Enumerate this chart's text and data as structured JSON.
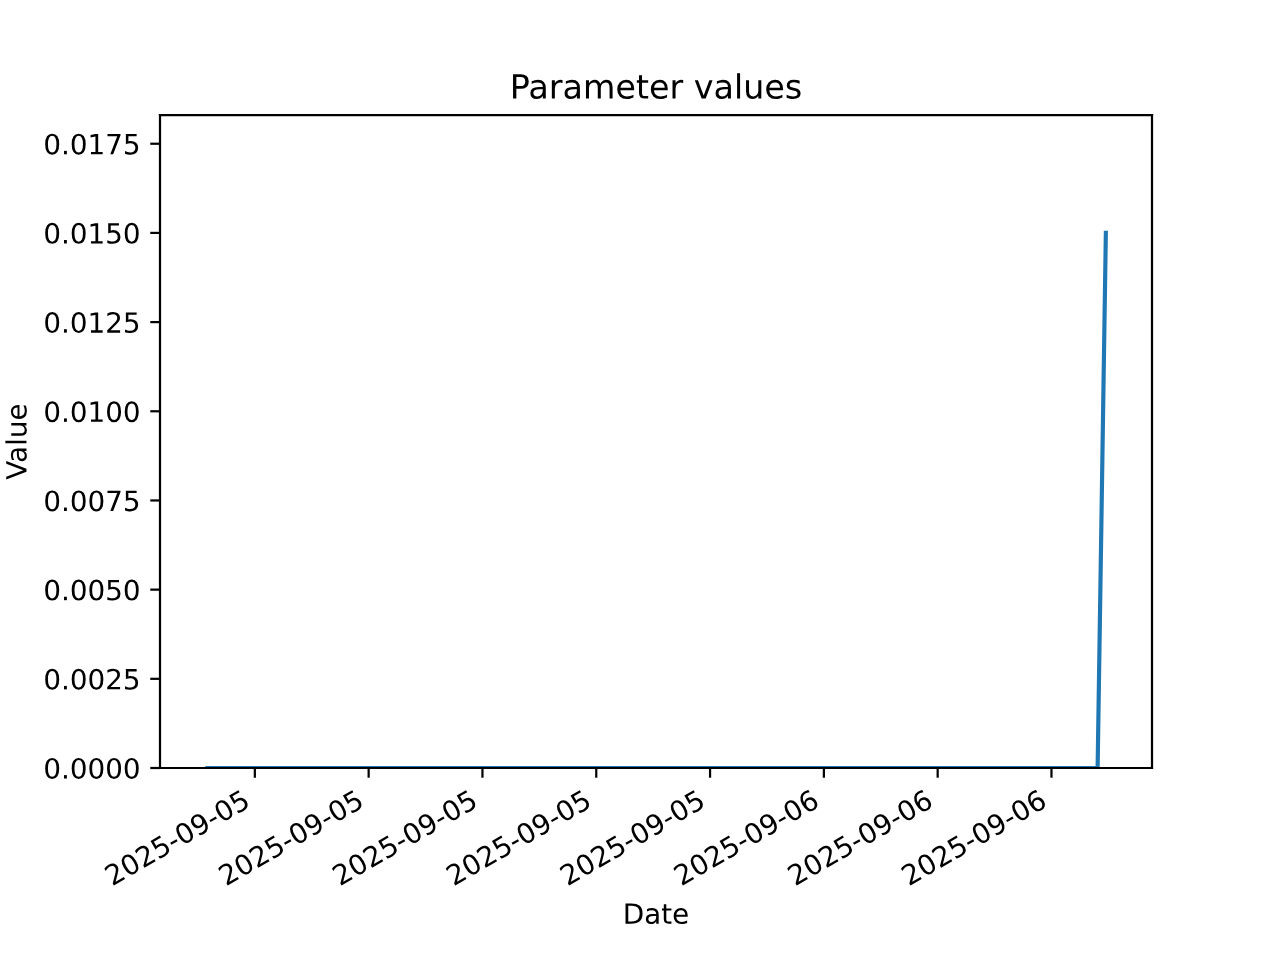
{
  "chart_data": {
    "type": "line",
    "title": "Parameter values",
    "xlabel": "Date",
    "ylabel": "Value",
    "x": [
      "2025-09-05T07:45",
      "2025-09-06T07:13",
      "2025-09-06T07:26"
    ],
    "series": [
      {
        "color": "#1f77b4",
        "values": [
          0,
          0,
          0.015
        ]
      }
    ],
    "xlim": [
      "2025-09-05T06:30",
      "2025-09-06T08:39"
    ],
    "xticks": [
      {
        "value": "2025-09-05T09:00",
        "label": "2025-09-05"
      },
      {
        "value": "2025-09-05T12:00",
        "label": "2025-09-05"
      },
      {
        "value": "2025-09-05T15:00",
        "label": "2025-09-05"
      },
      {
        "value": "2025-09-05T18:00",
        "label": "2025-09-05"
      },
      {
        "value": "2025-09-05T21:00",
        "label": "2025-09-05"
      },
      {
        "value": "2025-09-06T00:00",
        "label": "2025-09-06"
      },
      {
        "value": "2025-09-06T03:00",
        "label": "2025-09-06"
      },
      {
        "value": "2025-09-06T06:00",
        "label": "2025-09-06"
      }
    ],
    "ylim": [
      0,
      0.0183
    ],
    "yticks": [
      {
        "value": 0,
        "label": "0.0000"
      },
      {
        "value": 0.0025,
        "label": "0.0025"
      },
      {
        "value": 0.005,
        "label": "0.0050"
      },
      {
        "value": 0.0075,
        "label": "0.0075"
      },
      {
        "value": 0.01,
        "label": "0.0100"
      },
      {
        "value": 0.0125,
        "label": "0.0125"
      },
      {
        "value": 0.015,
        "label": "0.0150"
      },
      {
        "value": 0.0175,
        "label": "0.0175"
      }
    ],
    "grid": false
  }
}
